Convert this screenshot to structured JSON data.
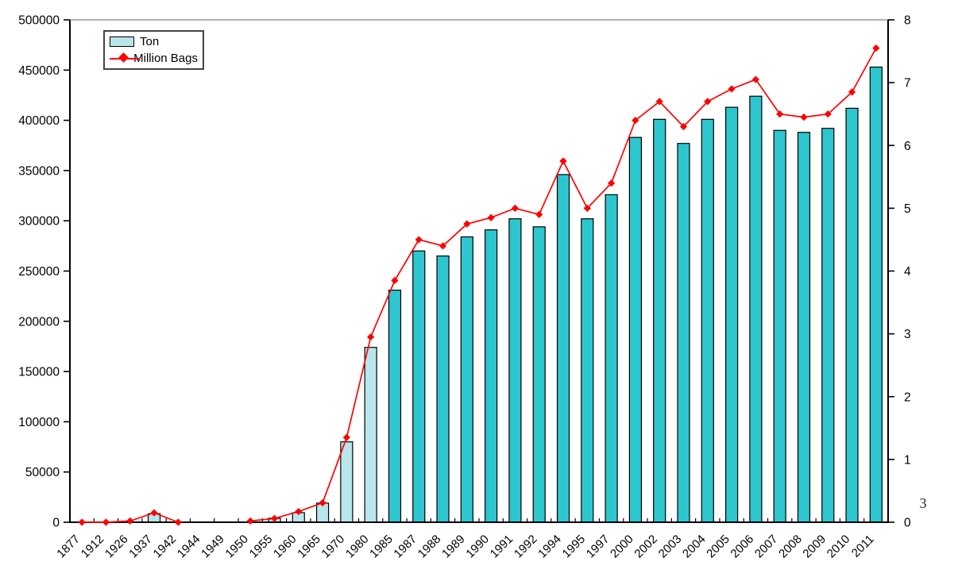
{
  "chart_data": {
    "type": "combo-bar-line",
    "title": "",
    "categories": [
      "1877",
      "1912",
      "1926",
      "1937",
      "1942",
      "1944",
      "1949",
      "1950",
      "1955",
      "1960",
      "1965",
      "1970",
      "1980",
      "1985",
      "1987",
      "1988",
      "1989",
      "1990",
      "1991",
      "1992",
      "1994",
      "1995",
      "1997",
      "2000",
      "2002",
      "2003",
      "2004",
      "2005",
      "2006",
      "2007",
      "2008",
      "2009",
      "2010",
      "2011"
    ],
    "series": [
      {
        "name": "Ton",
        "type": "bar",
        "axis": "left",
        "color": "#2EC6CE",
        "color_light": "#B9E6EA",
        "light_value_indices": [
          3,
          8,
          9,
          10,
          11,
          12
        ],
        "values": [
          0,
          0,
          0,
          8500,
          0,
          0,
          0,
          0,
          4000,
          9500,
          19000,
          80000,
          174000,
          231000,
          270000,
          265000,
          284000,
          291000,
          302000,
          294000,
          346000,
          302000,
          326000,
          383000,
          401000,
          377000,
          401000,
          413000,
          424000,
          390000,
          388000,
          392000,
          412000,
          453000
        ]
      },
      {
        "name": "Million Bags",
        "type": "line",
        "axis": "right",
        "color": "#FF0000",
        "marker": "diamond",
        "values": [
          0,
          0,
          0.02,
          0.15,
          0,
          null,
          null,
          0.02,
          0.06,
          0.17,
          0.31,
          1.35,
          2.95,
          3.85,
          4.5,
          4.4,
          4.75,
          4.85,
          5.0,
          4.9,
          5.75,
          5.0,
          5.4,
          6.4,
          6.7,
          6.3,
          6.7,
          6.9,
          7.05,
          6.5,
          6.45,
          6.5,
          6.85,
          7.55
        ]
      }
    ],
    "left_axis": {
      "min": 0,
      "max": 500000,
      "step": 50000,
      "tick_labels": [
        "0",
        "50000",
        "100000",
        "150000",
        "200000",
        "250000",
        "300000",
        "350000",
        "400000",
        "450000",
        "500000"
      ]
    },
    "right_axis": {
      "min": 0,
      "max": 8,
      "step": 1,
      "tick_labels": [
        "0",
        "1",
        "2",
        "3",
        "4",
        "5",
        "6",
        "7",
        "8"
      ]
    },
    "grid": "top-line-only",
    "legend_position": "top-left",
    "annotation": "3",
    "colors": {
      "gridline": "#9a9a9a",
      "axis": "#000000",
      "text": "#000000",
      "background": "#ffffff"
    }
  }
}
